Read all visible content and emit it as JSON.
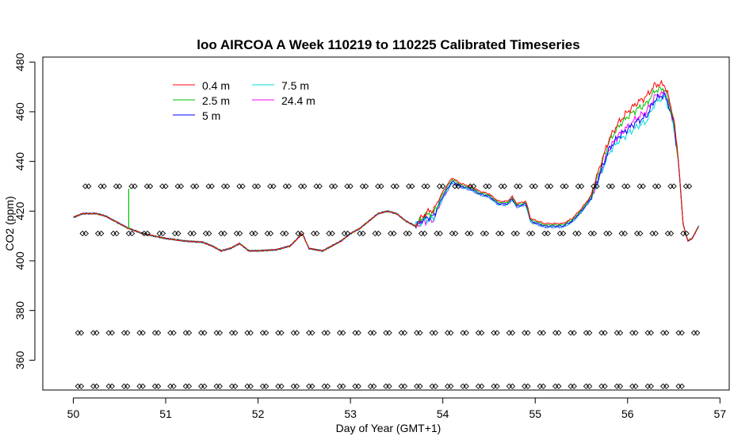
{
  "chart_data": {
    "type": "line",
    "title": "loo AIRCOA A  Week 110219 to 110225  Calibrated Timeseries",
    "xlabel": "Day of Year (GMT+1)",
    "ylabel": "CO2 (ppm)",
    "xlim": [
      49.67,
      57.1
    ],
    "ylim": [
      348,
      482
    ],
    "x_ticks": [
      50,
      51,
      52,
      53,
      54,
      55,
      56,
      57
    ],
    "y_ticks": [
      360,
      380,
      400,
      420,
      440,
      460,
      480
    ],
    "grid": false,
    "legend_position": "top-left",
    "series": [
      {
        "name": "0.4 m",
        "color": "#ff0000",
        "offsets": [
          [
            53.7,
            0
          ],
          [
            53.85,
            2.5
          ],
          [
            54.2,
            1
          ],
          [
            55.6,
            1
          ],
          [
            55.7,
            3
          ],
          [
            55.8,
            4
          ],
          [
            56.0,
            7
          ],
          [
            56.2,
            8
          ],
          [
            56.35,
            5
          ],
          [
            56.5,
            2
          ],
          [
            56.6,
            0
          ]
        ]
      },
      {
        "name": "2.5 m",
        "color": "#00c000",
        "offsets": [
          [
            53.7,
            0
          ],
          [
            53.85,
            1.5
          ],
          [
            54.2,
            0.5
          ],
          [
            55.6,
            0.5
          ],
          [
            55.7,
            2
          ],
          [
            55.8,
            3
          ],
          [
            56.0,
            5
          ],
          [
            56.2,
            5
          ],
          [
            56.35,
            3
          ],
          [
            56.5,
            1
          ],
          [
            56.6,
            0
          ]
        ]
      },
      {
        "name": "5 m",
        "color": "#0000ff",
        "offsets": [
          [
            53.7,
            0
          ],
          [
            53.85,
            0
          ],
          [
            54.2,
            0
          ],
          [
            55.6,
            0
          ],
          [
            55.7,
            0
          ],
          [
            55.8,
            0
          ],
          [
            56.0,
            0
          ],
          [
            56.2,
            0
          ],
          [
            56.35,
            0
          ],
          [
            56.5,
            0
          ],
          [
            56.6,
            0
          ]
        ]
      },
      {
        "name": "7.5 m",
        "color": "#00d8d8",
        "offsets": [
          [
            53.7,
            0
          ],
          [
            53.85,
            -1
          ],
          [
            54.2,
            -0.5
          ],
          [
            55.6,
            -0.5
          ],
          [
            55.7,
            -1
          ],
          [
            55.8,
            -1.5
          ],
          [
            56.0,
            -2
          ],
          [
            56.2,
            -2
          ],
          [
            56.35,
            -1
          ],
          [
            56.5,
            -0.5
          ],
          [
            56.6,
            0
          ]
        ]
      },
      {
        "name": "24.4 m",
        "color": "#ff00ff",
        "offsets": [
          [
            53.7,
            0
          ],
          [
            53.85,
            -1.5
          ],
          [
            54.2,
            -0.5
          ],
          [
            55.6,
            -0.5
          ],
          [
            55.7,
            -0.5
          ],
          [
            55.8,
            0
          ],
          [
            56.0,
            1
          ],
          [
            56.2,
            2
          ],
          [
            56.35,
            1
          ],
          [
            56.5,
            0
          ],
          [
            56.6,
            0
          ]
        ]
      }
    ],
    "base_profile": [
      [
        50.0,
        417.5
      ],
      [
        50.1,
        419
      ],
      [
        50.25,
        419
      ],
      [
        50.35,
        418
      ],
      [
        50.45,
        416
      ],
      [
        50.6,
        413
      ],
      [
        50.75,
        411
      ],
      [
        51.0,
        409
      ],
      [
        51.2,
        408
      ],
      [
        51.4,
        407.5
      ],
      [
        51.5,
        406
      ],
      [
        51.6,
        404
      ],
      [
        51.7,
        405
      ],
      [
        51.8,
        407
      ],
      [
        51.9,
        404
      ],
      [
        52.0,
        404
      ],
      [
        52.2,
        404.5
      ],
      [
        52.35,
        406
      ],
      [
        52.48,
        411
      ],
      [
        52.55,
        405
      ],
      [
        52.7,
        404
      ],
      [
        52.9,
        408
      ],
      [
        53.0,
        411
      ],
      [
        53.1,
        413
      ],
      [
        53.2,
        416
      ],
      [
        53.3,
        419
      ],
      [
        53.4,
        420
      ],
      [
        53.5,
        419
      ],
      [
        53.6,
        416
      ],
      [
        53.7,
        414
      ],
      [
        53.8,
        417
      ],
      [
        53.9,
        418
      ],
      [
        54.0,
        426
      ],
      [
        54.1,
        432
      ],
      [
        54.2,
        430
      ],
      [
        54.3,
        429
      ],
      [
        54.4,
        427
      ],
      [
        54.5,
        426
      ],
      [
        54.6,
        423
      ],
      [
        54.7,
        423
      ],
      [
        54.75,
        425
      ],
      [
        54.8,
        422
      ],
      [
        54.9,
        423
      ],
      [
        54.95,
        416
      ],
      [
        55.1,
        414
      ],
      [
        55.3,
        414
      ],
      [
        55.4,
        416
      ],
      [
        55.5,
        420
      ],
      [
        55.6,
        425
      ],
      [
        55.7,
        435
      ],
      [
        55.8,
        445
      ],
      [
        55.9,
        450
      ],
      [
        56.0,
        453
      ],
      [
        56.1,
        456
      ],
      [
        56.2,
        458
      ],
      [
        56.3,
        465
      ],
      [
        56.4,
        467
      ],
      [
        56.45,
        462
      ],
      [
        56.5,
        455
      ],
      [
        56.55,
        440
      ],
      [
        56.6,
        415
      ],
      [
        56.65,
        408
      ],
      [
        56.7,
        409
      ],
      [
        56.77,
        414
      ]
    ],
    "spike": {
      "series": "2.5 m",
      "x": 50.6,
      "y_top": 429,
      "y_base": 413
    },
    "marker_rows": [
      {
        "y": 430,
        "x_start": 50.13,
        "x_end": 56.65,
        "step": 0.1667
      },
      {
        "y": 411,
        "x_start": 50.1,
        "x_end": 56.75,
        "step": 0.1667
      },
      {
        "y": 371,
        "x_start": 50.05,
        "x_end": 56.75,
        "step": 0.1667
      },
      {
        "y": 349.5,
        "x_start": 50.05,
        "x_end": 56.65,
        "step": 0.1667
      }
    ]
  }
}
